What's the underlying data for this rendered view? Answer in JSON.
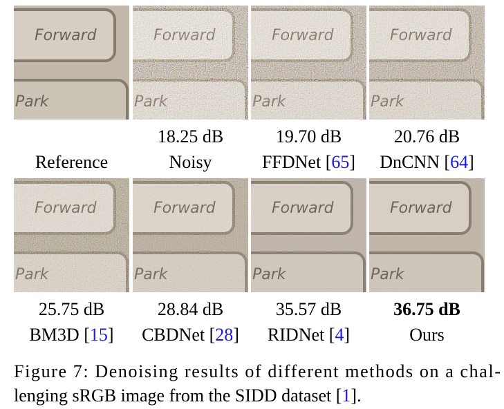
{
  "photo": {
    "key_top": "Forward",
    "key_bottom": "Park"
  },
  "panels": [
    {
      "psnr": null,
      "label": [
        {
          "text": "Reference"
        }
      ]
    },
    {
      "psnr": "18.25 dB",
      "label": [
        {
          "text": "Noisy"
        }
      ]
    },
    {
      "psnr": "19.70 dB",
      "label": [
        {
          "text": "FFDNet ["
        },
        {
          "text": "65",
          "link": true
        },
        {
          "text": "]"
        }
      ]
    },
    {
      "psnr": "20.76 dB",
      "label": [
        {
          "text": "DnCNN ["
        },
        {
          "text": "64",
          "link": true
        },
        {
          "text": "]"
        }
      ]
    },
    {
      "psnr": "25.75 dB",
      "label": [
        {
          "text": "BM3D ["
        },
        {
          "text": "15",
          "link": true
        },
        {
          "text": "]"
        }
      ]
    },
    {
      "psnr": "28.84 dB",
      "label": [
        {
          "text": "CBDNet ["
        },
        {
          "text": "28",
          "link": true
        },
        {
          "text": "]"
        }
      ]
    },
    {
      "psnr": "35.57 dB",
      "label": [
        {
          "text": "RIDNet ["
        },
        {
          "text": "4",
          "link": true
        },
        {
          "text": "]"
        }
      ]
    },
    {
      "psnr": "36.75 dB",
      "bold": true,
      "label": [
        {
          "text": "Ours"
        }
      ]
    }
  ],
  "caption": [
    [
      {
        "text": "Figure 7: Denoising results of different methods on a chal-"
      }
    ],
    [
      {
        "text": "lenging sRGB image from the SIDD dataset ["
      },
      {
        "text": "1",
        "link": true
      },
      {
        "text": "]."
      }
    ]
  ]
}
